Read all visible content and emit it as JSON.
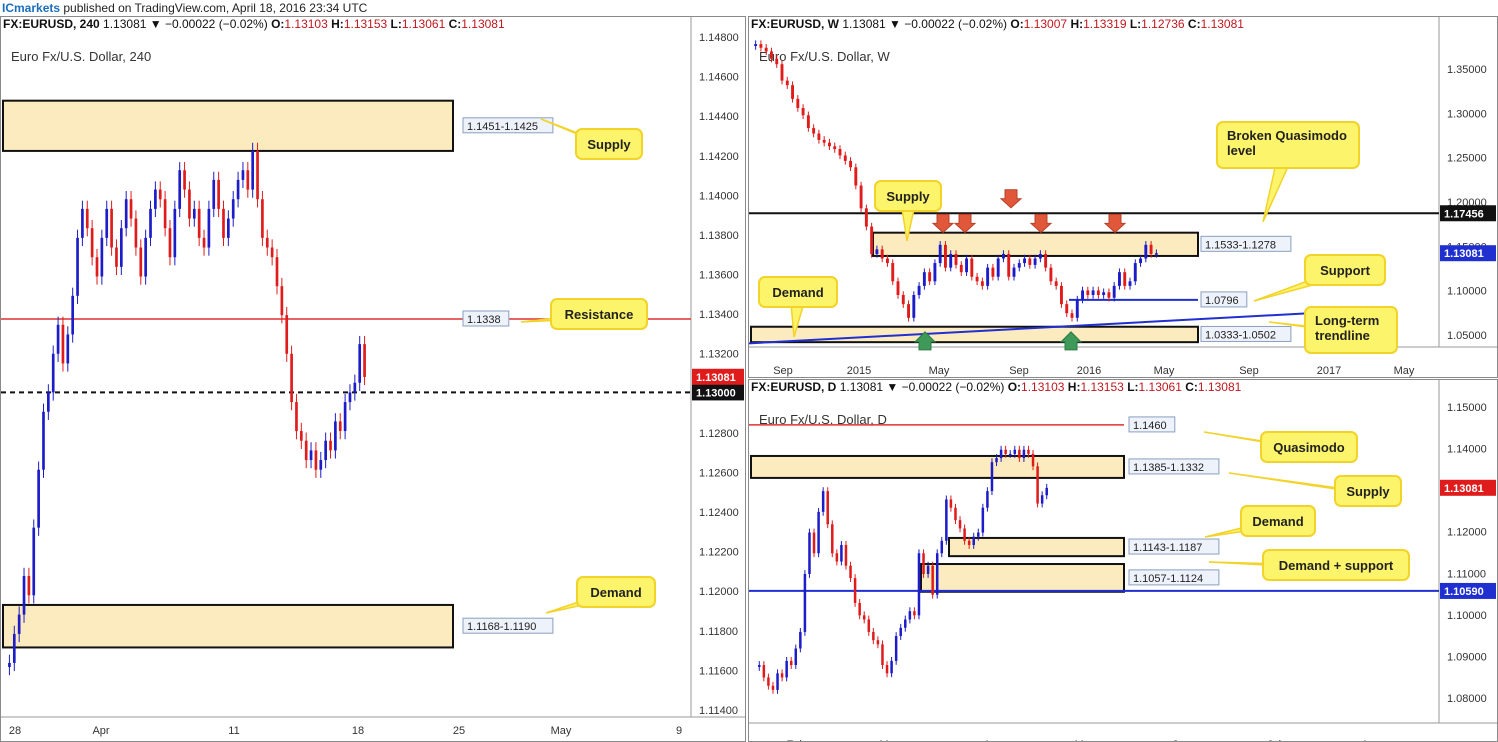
{
  "header": {
    "brand": "ICmarkets",
    "published": " published on TradingView.com, April 18, 2016 23:34 UTC"
  },
  "colors": {
    "up": "#1c1cc8",
    "down": "#e01b1b",
    "zone_fill": "#fdebc0",
    "label_fill": "#fcf46a",
    "label_stroke": "#f2d32a",
    "support_line": "#1f2fd0",
    "resistance_line": "#e03030"
  },
  "panels": {
    "h4": {
      "symbol": "FX:EURUSD, 240",
      "change": "1.13081 ▼ −0.00022 (−0.02%)",
      "o": "1.13103",
      "h": "1.13153",
      "l": "1.13061",
      "c": "1.13081",
      "title": "Euro Fx/U.S. Dollar, 240"
    },
    "weekly": {
      "symbol": "FX:EURUSD, W",
      "change": "1.13081 ▼ −0.00022 (−0.02%)",
      "o": "1.13007",
      "h": "1.13319",
      "l": "1.12736",
      "c": "1.13081",
      "title": "Euro Fx/U.S. Dollar, W"
    },
    "daily": {
      "symbol": "FX:EURUSD, D",
      "change": "1.13081 ▼ −0.00022 (−0.02%)",
      "o": "1.13103",
      "h": "1.13153",
      "l": "1.13061",
      "c": "1.13081",
      "title": "Euro Fx/U.S. Dollar, D"
    }
  },
  "chart_data": [
    {
      "id": "h4",
      "type": "candlestick",
      "title": "Euro Fx/U.S. Dollar, 240",
      "ylim": [
        1.1132,
        1.1485
      ],
      "y_ticks": [
        "1.14800",
        "1.14600",
        "1.14400",
        "1.14200",
        "1.14000",
        "1.13800",
        "1.13600",
        "1.13400",
        "1.13200",
        "1.13000",
        "1.12800",
        "1.12600",
        "1.12400",
        "1.12200",
        "1.12000",
        "1.11800",
        "1.11600",
        "1.11400"
      ],
      "x_ticks": [
        "28",
        "Apr",
        "11",
        "18",
        "25",
        "May",
        "9"
      ],
      "last_price": "1.13081",
      "zones": [
        {
          "name": "Supply",
          "range": "1.1451-1.1425",
          "low": 1.1425,
          "high": 1.1451
        },
        {
          "name": "Demand",
          "range": "1.1168-1.1190",
          "low": 1.1168,
          "high": 1.119
        }
      ],
      "levels": [
        {
          "name": "Resistance",
          "value": 1.1338,
          "label": "1.1338",
          "style": "solid-red"
        },
        {
          "name": "Psychological",
          "value": 1.13,
          "label": "1.13000",
          "style": "dashed-black"
        }
      ],
      "annotations": [
        "Supply",
        "Resistance",
        "Demand"
      ],
      "closes": [
        1.116,
        1.1175,
        1.1185,
        1.1205,
        1.1195,
        1.123,
        1.126,
        1.129,
        1.13,
        1.132,
        1.1335,
        1.1315,
        1.133,
        1.135,
        1.138,
        1.1395,
        1.1385,
        1.137,
        1.136,
        1.138,
        1.1395,
        1.1375,
        1.1365,
        1.1385,
        1.14,
        1.139,
        1.1375,
        1.136,
        1.138,
        1.1395,
        1.1405,
        1.14,
        1.1385,
        1.137,
        1.1395,
        1.1415,
        1.1405,
        1.139,
        1.1395,
        1.138,
        1.1375,
        1.1395,
        1.141,
        1.1395,
        1.138,
        1.139,
        1.14,
        1.141,
        1.1415,
        1.1405,
        1.1425,
        1.14,
        1.138,
        1.1375,
        1.137,
        1.1355,
        1.134,
        1.132,
        1.1295,
        1.128,
        1.1275,
        1.1265,
        1.127,
        1.126,
        1.1265,
        1.1275,
        1.127,
        1.1285,
        1.128,
        1.1295,
        1.13,
        1.1305,
        1.1325,
        1.1308
      ]
    },
    {
      "id": "weekly",
      "type": "candlestick",
      "title": "Euro Fx/U.S. Dollar, W",
      "ylim": [
        1.028,
        1.37
      ],
      "y_ticks": [
        "1.35000",
        "1.30000",
        "1.25000",
        "1.20000",
        "1.15000",
        "1.10000",
        "1.05000"
      ],
      "x_ticks": [
        "Sep",
        "2015",
        "May",
        "Sep",
        "2016",
        "May",
        "Sep",
        "2017",
        "May"
      ],
      "last_price": "1.13081",
      "level_badge": "1.17456",
      "zones": [
        {
          "name": "Supply",
          "range": "1.1533-1.1278",
          "low": 1.1278,
          "high": 1.1533
        },
        {
          "name": "Demand",
          "range": "1.0333-1.0502",
          "low": 1.0333,
          "high": 1.0502
        }
      ],
      "levels": [
        {
          "name": "Broken Quasimodo level",
          "value": 1.1746,
          "label": "1.17456"
        },
        {
          "name": "Support",
          "value": 1.0796,
          "label": "1.0796"
        }
      ],
      "annotations": [
        "Supply",
        "Broken Quasimodo level",
        "Support",
        "Long-term trendline",
        "Demand"
      ],
      "closes": [
        1.36,
        1.356,
        1.352,
        1.344,
        1.338,
        1.32,
        1.315,
        1.3,
        1.29,
        1.282,
        1.268,
        1.262,
        1.255,
        1.252,
        1.248,
        1.245,
        1.238,
        1.232,
        1.225,
        1.205,
        1.18,
        1.16,
        1.13,
        1.135,
        1.125,
        1.12,
        1.1,
        1.085,
        1.075,
        1.06,
        1.085,
        1.095,
        1.11,
        1.1,
        1.12,
        1.14,
        1.115,
        1.13,
        1.118,
        1.11,
        1.125,
        1.105,
        1.1,
        1.095,
        1.115,
        1.105,
        1.125,
        1.13,
        1.105,
        1.115,
        1.12,
        1.125,
        1.118,
        1.125,
        1.13,
        1.115,
        1.1,
        1.095,
        1.075,
        1.065,
        1.06,
        1.08,
        1.09,
        1.085,
        1.09,
        1.085,
        1.088,
        1.082,
        1.095,
        1.11,
        1.095,
        1.1,
        1.12,
        1.125,
        1.14,
        1.13,
        1.1308
      ]
    },
    {
      "id": "daily",
      "type": "candlestick",
      "title": "Euro Fx/U.S. Dollar, D",
      "ylim": [
        1.074,
        1.1525
      ],
      "y_ticks": [
        "1.15000",
        "1.14000",
        "1.13000",
        "1.12000",
        "1.11000",
        "1.10000",
        "1.09000",
        "1.08000"
      ],
      "x_ticks": [
        "Feb",
        "Mar",
        "Apr",
        "May",
        "Jun",
        "Jul",
        "Aug"
      ],
      "last_price": "1.13081",
      "level_badge": "1.10590",
      "zones": [
        {
          "name": "Supply",
          "range": "1.1385-1.1332",
          "low": 1.1332,
          "high": 1.1385
        },
        {
          "name": "Demand",
          "range": "1.1143-1.1187",
          "low": 1.1143,
          "high": 1.1187
        },
        {
          "name": "Demand + support",
          "range": "1.1057-1.1124",
          "low": 1.1057,
          "high": 1.1124
        }
      ],
      "levels": [
        {
          "name": "Quasimodo",
          "value": 1.146,
          "label": "1.1460"
        },
        {
          "name": "Support",
          "value": 1.1059,
          "label": "1.10590"
        }
      ],
      "annotations": [
        "Quasimodo",
        "Supply",
        "Demand",
        "Demand + support"
      ],
      "closes": [
        1.088,
        1.085,
        1.083,
        1.082,
        1.086,
        1.085,
        1.089,
        1.088,
        1.092,
        1.096,
        1.11,
        1.12,
        1.115,
        1.125,
        1.13,
        1.122,
        1.115,
        1.113,
        1.117,
        1.112,
        1.109,
        1.103,
        1.1,
        1.099,
        1.096,
        1.094,
        1.093,
        1.088,
        1.086,
        1.089,
        1.095,
        1.097,
        1.099,
        1.101,
        1.1,
        1.115,
        1.11,
        1.112,
        1.105,
        1.115,
        1.118,
        1.128,
        1.126,
        1.123,
        1.121,
        1.118,
        1.117,
        1.119,
        1.12,
        1.126,
        1.13,
        1.137,
        1.138,
        1.14,
        1.139,
        1.139,
        1.14,
        1.138,
        1.14,
        1.139,
        1.136,
        1.127,
        1.129,
        1.1308
      ]
    }
  ]
}
